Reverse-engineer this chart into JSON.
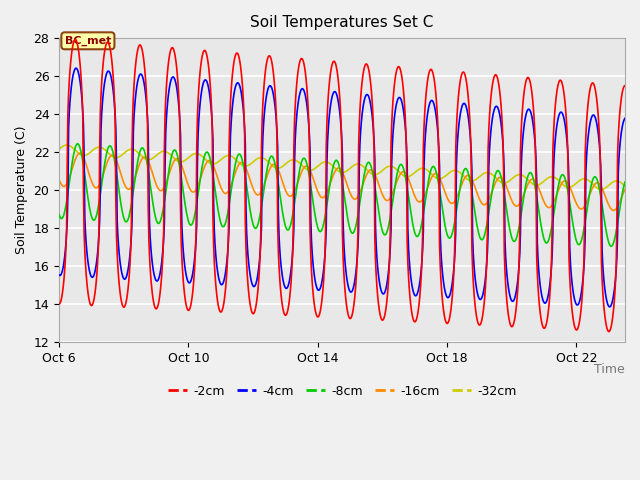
{
  "title": "Soil Temperatures Set C",
  "xlabel": "Time",
  "ylabel": "Soil Temperature (C)",
  "ylim": [
    12,
    28
  ],
  "yticks": [
    12,
    14,
    16,
    18,
    20,
    22,
    24,
    26,
    28
  ],
  "xtick_labels": [
    "Oct 6",
    "Oct 10",
    "Oct 14",
    "Oct 18",
    "Oct 22"
  ],
  "xtick_positions": [
    0,
    4,
    8,
    12,
    16
  ],
  "legend_labels": [
    "-2cm",
    "-4cm",
    "-8cm",
    "-16cm",
    "-32cm"
  ],
  "line_colors": [
    "#ff0000",
    "#0000ff",
    "#00cc00",
    "#ff8c00",
    "#cccc00"
  ],
  "annotation_text": "BC_met",
  "plot_bg_color": "#e8e8e8",
  "fig_bg_color": "#f0f0f0",
  "grid_color": "#ffffff",
  "total_days": 17.5,
  "points_per_day": 48
}
